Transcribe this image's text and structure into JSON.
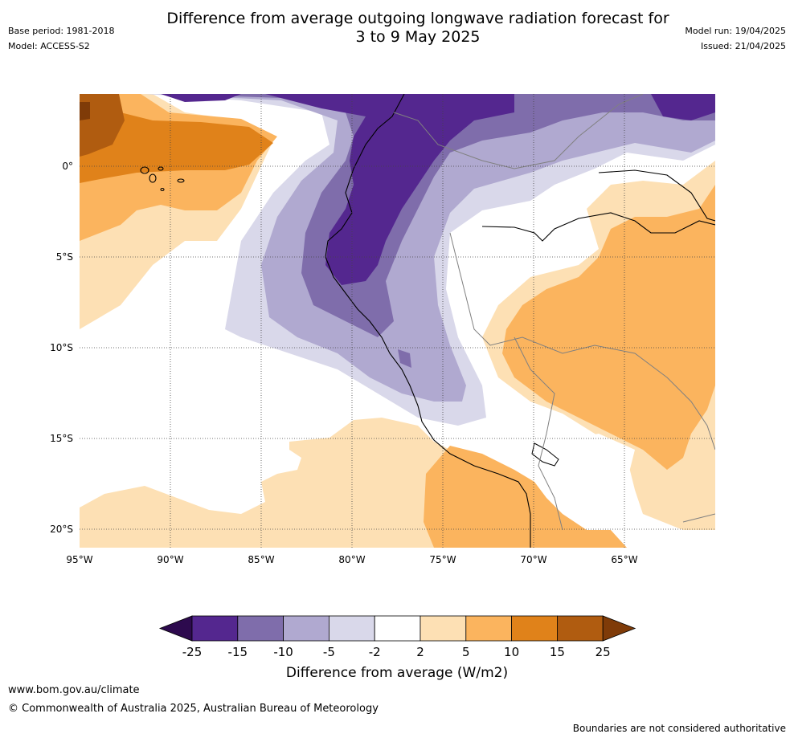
{
  "header": {
    "title_line1": "Difference from average outgoing longwave radiation forecast for",
    "title_line2": "3 to 9 May 2025",
    "base_period": "Base period: 1981-2018",
    "model": "Model: ACCESS-S2",
    "model_run": "Model run: 19/04/2025",
    "issued": "Issued: 21/04/2025"
  },
  "map": {
    "lat_labels": [
      "0°",
      "5°S",
      "10°S",
      "15°S",
      "20°S"
    ],
    "lon_labels": [
      "95°W",
      "90°W",
      "85°W",
      "80°W",
      "75°W",
      "70°W",
      "65°W"
    ]
  },
  "colorbar": {
    "ticks": [
      "-25",
      "-15",
      "-10",
      "-5",
      "-2",
      "2",
      "5",
      "10",
      "15",
      "25"
    ],
    "colors": [
      "#2d0a4e",
      "#54278f",
      "#7f6dab",
      "#b0a9d0",
      "#d9d8ea",
      "#ffffff",
      "#fde0b4",
      "#fbb45e",
      "#e0821a",
      "#b05c10",
      "#7f3b08"
    ],
    "label": "Difference from average (W/m2)"
  },
  "footer": {
    "url": "www.bom.gov.au/climate",
    "copyright": "© Commonwealth of Australia 2025, Australian Bureau of Meteorology",
    "disclaimer": "Boundaries are not considered authoritative"
  }
}
